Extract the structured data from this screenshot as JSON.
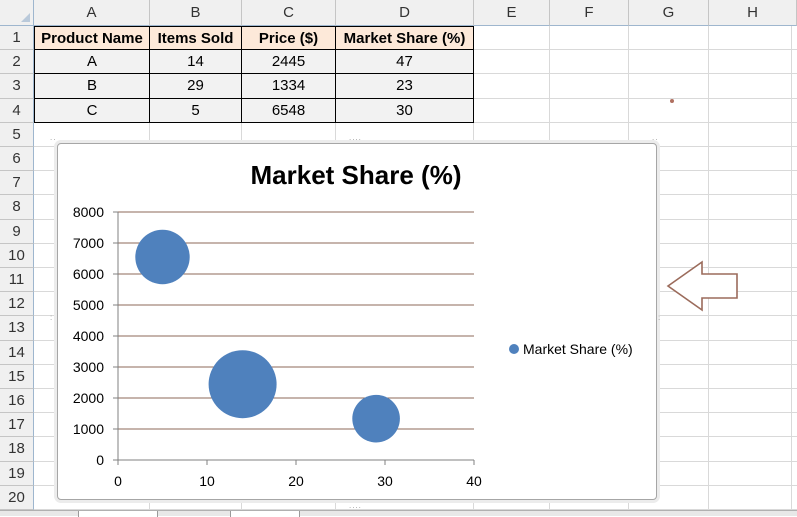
{
  "sheet": {
    "columns": [
      "A",
      "B",
      "C",
      "D",
      "E",
      "F",
      "G",
      "H"
    ],
    "rows": [
      "1",
      "2",
      "3",
      "4",
      "5",
      "6",
      "7",
      "8",
      "9",
      "10",
      "11",
      "12",
      "13",
      "14",
      "15",
      "16",
      "17",
      "18",
      "19",
      "20"
    ]
  },
  "table": {
    "headers": [
      "Product Name",
      "Items Sold",
      "Price ($)",
      "Market Share (%)"
    ],
    "rows": [
      [
        "A",
        "14",
        "2445",
        "47"
      ],
      [
        "B",
        "29",
        "1334",
        "23"
      ],
      [
        "C",
        "5",
        "6548",
        "30"
      ]
    ]
  },
  "chart_data": {
    "type": "scatter",
    "title": "Market Share (%)",
    "xlabel": "",
    "ylabel": "",
    "xlim": [
      0,
      40
    ],
    "ylim": [
      0,
      8000
    ],
    "x_ticks": [
      "0",
      "10",
      "20",
      "30",
      "40"
    ],
    "y_ticks": [
      "0",
      "1000",
      "2000",
      "3000",
      "4000",
      "5000",
      "6000",
      "7000",
      "8000"
    ],
    "grid": true,
    "legend_position": "right",
    "series": [
      {
        "name": "Market Share (%)",
        "color": "#4f81bd",
        "points": [
          {
            "x": 14,
            "y": 2445,
            "size": 47
          },
          {
            "x": 29,
            "y": 1334,
            "size": 23
          },
          {
            "x": 5,
            "y": 6548,
            "size": 30
          }
        ]
      }
    ]
  },
  "colors": {
    "header_fill": "#fde9d9",
    "data_fill": "#f2f2f2",
    "bubble": "#4f81bd",
    "gridline": "#8c6a5a",
    "arrow": "#9b6b5b"
  },
  "icons": {
    "arrow": "left-arrow-outline-icon"
  }
}
